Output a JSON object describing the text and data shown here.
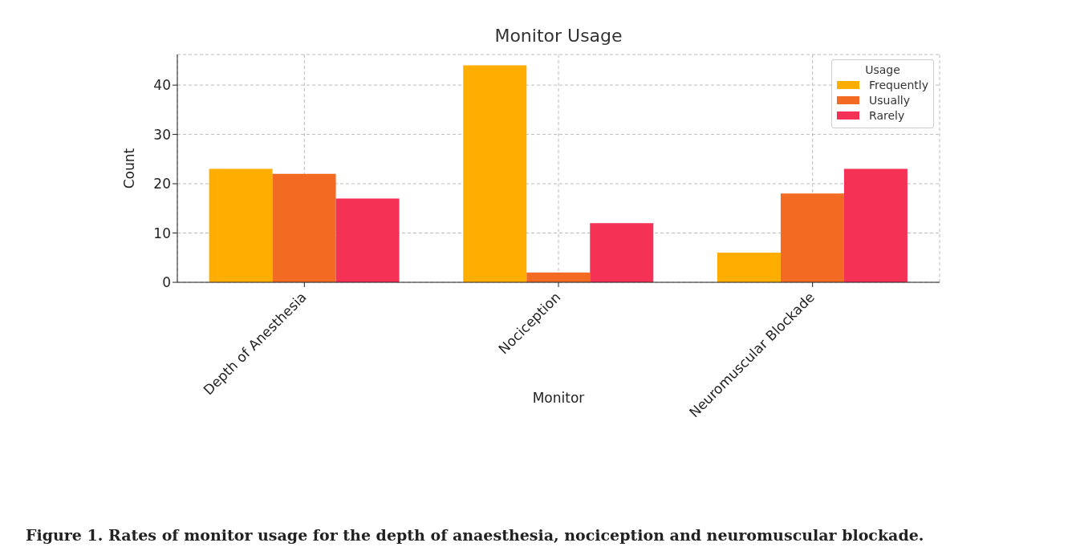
{
  "chart_data": {
    "type": "bar",
    "title": "Monitor Usage",
    "xlabel": "Monitor",
    "ylabel": "Count",
    "legend_title": "Usage",
    "categories": [
      "Depth of Anesthesia",
      "Nociception",
      "Neuromuscular Blockade"
    ],
    "series": [
      {
        "name": "Frequently",
        "color": "#ffae00",
        "values": [
          23,
          44,
          6
        ]
      },
      {
        "name": "Usually",
        "color": "#f36a22",
        "values": [
          22,
          2,
          18
        ]
      },
      {
        "name": "Rarely",
        "color": "#f53256",
        "values": [
          17,
          12,
          23
        ]
      }
    ],
    "ylim": [
      0,
      46.2
    ],
    "yticks": [
      0,
      10,
      20,
      30,
      40
    ],
    "grid": true,
    "legend": "top right",
    "annotations": [
      "Figure 1. Rates of monitor usage for the depth of anaesthesia, nociception and neuromuscular blockade."
    ]
  }
}
